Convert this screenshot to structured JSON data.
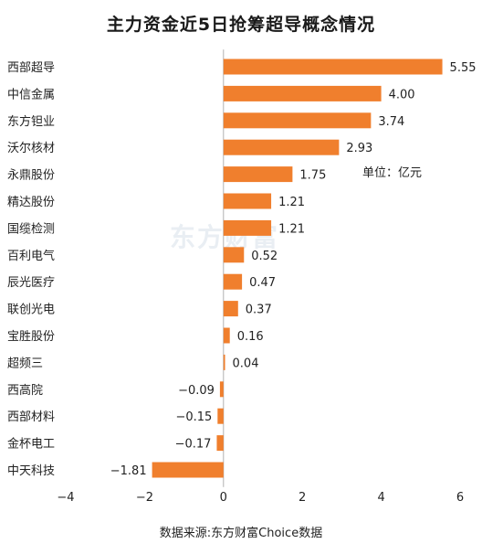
{
  "chart_data": {
    "type": "bar",
    "orientation": "horizontal",
    "title": "主力资金近5日抢筹超导概念情况",
    "unit_note": "单位：亿元",
    "source": "数据来源:东方财富Choice数据",
    "watermark": "东方财富",
    "categories": [
      "西部超导",
      "中信金属",
      "东方钽业",
      "沃尔核材",
      "永鼎股份",
      "精达股份",
      "国缆检测",
      "百利电气",
      "辰光医疗",
      "联创光电",
      "宝胜股份",
      "超频三",
      "西高院",
      "西部材料",
      "金杯电工",
      "中天科技"
    ],
    "values": [
      5.55,
      4.0,
      3.74,
      2.93,
      1.75,
      1.21,
      1.21,
      0.52,
      0.47,
      0.37,
      0.16,
      0.04,
      -0.09,
      -0.15,
      -0.17,
      -1.81
    ],
    "value_labels": [
      "5.55",
      "4.00",
      "3.74",
      "2.93",
      "1.75",
      "1.21",
      "1.21",
      "0.52",
      "0.47",
      "0.37",
      "0.16",
      "0.04",
      "−0.09",
      "−0.15",
      "−0.17",
      "−1.81"
    ],
    "xlim": [
      -4,
      6
    ],
    "xticks": [
      -4,
      -2,
      0,
      2,
      4,
      6
    ],
    "xtick_labels": [
      "−4",
      "−2",
      "0",
      "2",
      "4",
      "6"
    ],
    "bar_color": "#F07F2D",
    "axis_color": "#b0b0b0",
    "watermark_color": "#e9eef3",
    "grid": false,
    "legend": "none"
  }
}
